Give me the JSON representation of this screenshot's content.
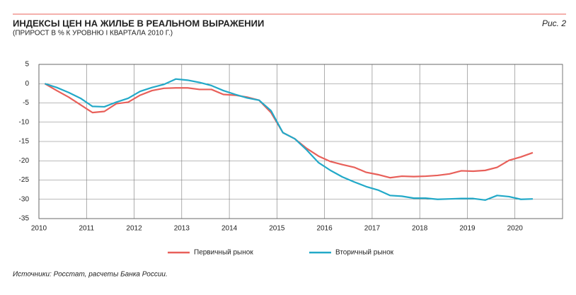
{
  "chart_data": {
    "type": "line",
    "title": "ИНДЕКСЫ ЦЕН НА ЖИЛЬЕ В РЕАЛЬНОМ ВЫРАЖЕНИИ",
    "subtitle": "(ПРИРОСТ В % К УРОВНЮ I КВАРТАЛА 2010 Г.)",
    "figure_label": "Рис. 2",
    "source": "Источники: Росстат, расчеты Банка России.",
    "x": [
      2010.125,
      2010.375,
      2010.625,
      2010.875,
      2011.125,
      2011.375,
      2011.625,
      2011.875,
      2012.125,
      2012.375,
      2012.625,
      2012.875,
      2013.125,
      2013.375,
      2013.625,
      2013.875,
      2014.125,
      2014.375,
      2014.625,
      2014.875,
      2015.125,
      2015.375,
      2015.625,
      2015.875,
      2016.125,
      2016.375,
      2016.625,
      2016.875,
      2017.125,
      2017.375,
      2017.625,
      2017.875,
      2018.125,
      2018.375,
      2018.625,
      2018.875,
      2019.125,
      2019.375,
      2019.625,
      2019.875,
      2020.125,
      2020.375
    ],
    "series": [
      {
        "name": "Первичный рынок",
        "color": "#e8605a",
        "values": [
          0,
          -1.8,
          -3.5,
          -5.5,
          -7.5,
          -7.2,
          -5.2,
          -4.8,
          -3.0,
          -1.8,
          -1.2,
          -1.1,
          -1.1,
          -1.5,
          -1.5,
          -2.8,
          -3.0,
          -3.5,
          -4.3,
          -7.5,
          -12.7,
          -14.3,
          -16.8,
          -18.8,
          -20.2,
          -21.0,
          -21.7,
          -23.0,
          -23.6,
          -24.4,
          -24.0,
          -24.1,
          -24.0,
          -23.8,
          -23.4,
          -22.6,
          -22.7,
          -22.5,
          -21.7,
          -19.9,
          -19.0,
          -17.9
        ]
      },
      {
        "name": "Вторичный рынок",
        "color": "#22a9c8",
        "values": [
          0,
          -1.0,
          -2.3,
          -3.8,
          -5.9,
          -6.0,
          -4.8,
          -3.8,
          -2.0,
          -1.0,
          -0.2,
          1.2,
          0.9,
          0.3,
          -0.5,
          -1.8,
          -2.8,
          -3.7,
          -4.3,
          -7.0,
          -12.7,
          -14.3,
          -17.2,
          -20.5,
          -22.5,
          -24.2,
          -25.5,
          -26.7,
          -27.6,
          -29.0,
          -29.2,
          -29.7,
          -29.7,
          -30.0,
          -29.9,
          -29.8,
          -29.8,
          -30.2,
          -29.0,
          -29.3,
          -30.0,
          -29.9
        ]
      }
    ],
    "xlim": [
      2010,
      2021
    ],
    "xticks": [
      2010,
      2011,
      2012,
      2013,
      2014,
      2015,
      2016,
      2017,
      2018,
      2019,
      2020
    ],
    "ylim": [
      -35,
      5
    ],
    "yticks": [
      5,
      0,
      -5,
      -10,
      -15,
      -20,
      -25,
      -30,
      -35
    ],
    "grid": true
  }
}
